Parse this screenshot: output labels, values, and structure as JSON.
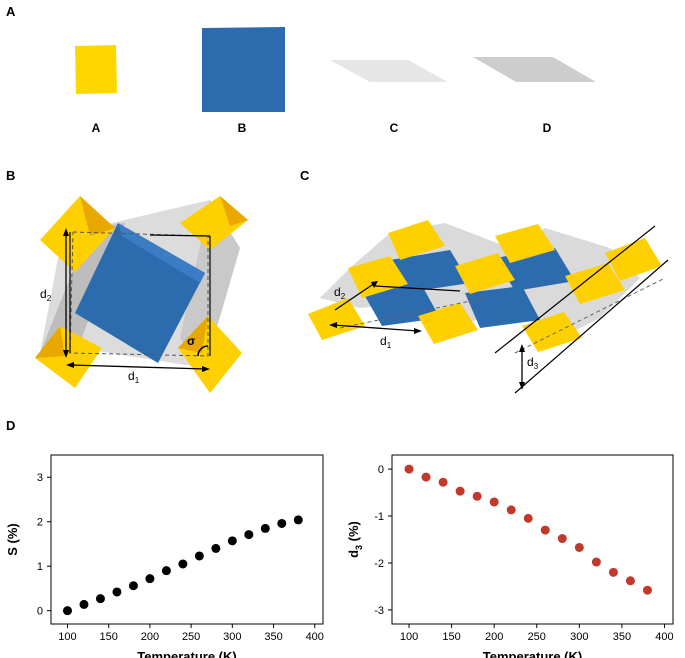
{
  "panels": {
    "A": "A",
    "B": "B",
    "C": "C",
    "D": "D"
  },
  "tiles": [
    {
      "label": "A",
      "color": "#FFD700"
    },
    {
      "label": "B",
      "color": "#2D6BAF"
    },
    {
      "label": "C",
      "color": "#E6E6E6"
    },
    {
      "label": "D",
      "color": "#CDCDCD"
    }
  ],
  "annotations": {
    "d": "d",
    "d1_sub": "1",
    "d2_sub": "2",
    "d3_sub": "3",
    "sigma": "σ"
  },
  "colors": {
    "yellow": "#FFD000",
    "blue": "#2D6BAF",
    "gray_light": "#E8E8E8",
    "gray_dark": "#C8C8C8",
    "black_marker": "#000000",
    "red_marker": "#C0392B"
  },
  "chart_data": [
    {
      "type": "scatter",
      "xlabel": "Temperature (K)",
      "ylabel": "S (%)",
      "ylabel_sub": "",
      "xlim": [
        80,
        410
      ],
      "ylim": [
        -0.3,
        3.5
      ],
      "xticks": [
        100,
        150,
        200,
        250,
        300,
        350,
        400
      ],
      "yticks": [
        0,
        1,
        2,
        3
      ],
      "marker_color": "#000000",
      "x": [
        100,
        120,
        140,
        160,
        180,
        200,
        220,
        240,
        260,
        280,
        300,
        320,
        340,
        360,
        380
      ],
      "y": [
        0.0,
        0.14,
        0.27,
        0.42,
        0.56,
        0.72,
        0.9,
        1.05,
        1.23,
        1.4,
        1.57,
        1.71,
        1.85,
        1.96,
        2.04
      ]
    },
    {
      "type": "scatter",
      "xlabel": "Temperature (K)",
      "ylabel": "d",
      "ylabel_sub": "3",
      "ylabel_unit": " (%)",
      "xlim": [
        80,
        410
      ],
      "ylim": [
        -3.3,
        0.3
      ],
      "xticks": [
        100,
        150,
        200,
        250,
        300,
        350,
        400
      ],
      "yticks": [
        0,
        -1,
        -2,
        -3
      ],
      "marker_color": "#C0392B",
      "x": [
        100,
        120,
        140,
        160,
        180,
        200,
        220,
        240,
        260,
        280,
        300,
        320,
        340,
        360,
        380
      ],
      "y": [
        0.0,
        -0.17,
        -0.28,
        -0.47,
        -0.58,
        -0.7,
        -0.87,
        -1.05,
        -1.3,
        -1.48,
        -1.67,
        -1.98,
        -2.2,
        -2.38,
        -2.58
      ]
    }
  ]
}
